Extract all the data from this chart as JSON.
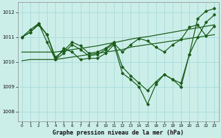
{
  "title": "Graphe pression niveau de la mer (hPa)",
  "bg_color": "#cceee8",
  "grid_color": "#aadddd",
  "line_color": "#1a5c1a",
  "xlim": [
    -0.5,
    23.5
  ],
  "ylim": [
    1007.6,
    1012.4
  ],
  "yticks": [
    1008,
    1009,
    1010,
    1011,
    1012
  ],
  "xtick_labels": [
    "0",
    "1",
    "2",
    "3",
    "4",
    "5",
    "6",
    "7",
    "8",
    "9",
    "10",
    "11",
    "12",
    "13",
    "14",
    "15",
    "16",
    "17",
    "18",
    "19",
    "20",
    "21",
    "22",
    "23"
  ],
  "series_jagged1": [
    1011.0,
    1011.2,
    1011.55,
    1011.1,
    1010.2,
    1010.45,
    1010.8,
    1010.65,
    1010.35,
    1010.4,
    1010.55,
    1010.8,
    1009.8,
    1009.45,
    1009.15,
    1008.85,
    1009.2,
    1009.5,
    1009.3,
    1009.15,
    1010.3,
    1011.75,
    1012.05,
    1012.15
  ],
  "series_jagged2": [
    1011.0,
    1011.3,
    1011.55,
    1010.8,
    1010.1,
    1010.55,
    1010.4,
    1010.1,
    1010.15,
    1010.15,
    1010.35,
    1010.7,
    1009.55,
    1009.3,
    1009.0,
    1008.3,
    1009.1,
    1009.5,
    1009.3,
    1009.0,
    1010.3,
    1011.0,
    1011.6,
    1011.9
  ],
  "series_trend1": [
    1010.05,
    1010.1,
    1010.1,
    1010.1,
    1010.1,
    1010.15,
    1010.2,
    1010.25,
    1010.3,
    1010.35,
    1010.4,
    1010.45,
    1010.5,
    1010.6,
    1010.65,
    1010.7,
    1010.75,
    1010.8,
    1010.85,
    1010.9,
    1010.95,
    1011.0,
    1011.05,
    1011.1
  ],
  "series_trend2": [
    1010.4,
    1010.4,
    1010.4,
    1010.4,
    1010.4,
    1010.45,
    1010.5,
    1010.55,
    1010.6,
    1010.65,
    1010.72,
    1010.78,
    1010.85,
    1010.92,
    1010.98,
    1011.02,
    1011.08,
    1011.14,
    1011.2,
    1011.26,
    1011.32,
    1011.38,
    1011.44,
    1011.5
  ],
  "series_top": [
    1011.0,
    1011.2,
    1011.5,
    1011.1,
    1010.1,
    1010.35,
    1010.7,
    1010.5,
    1010.25,
    1010.3,
    1010.5,
    1010.75,
    1010.4,
    1010.7,
    1010.95,
    1010.85,
    1010.6,
    1010.4,
    1010.7,
    1010.9,
    1011.4,
    1011.5,
    1011.05,
    1011.45
  ]
}
